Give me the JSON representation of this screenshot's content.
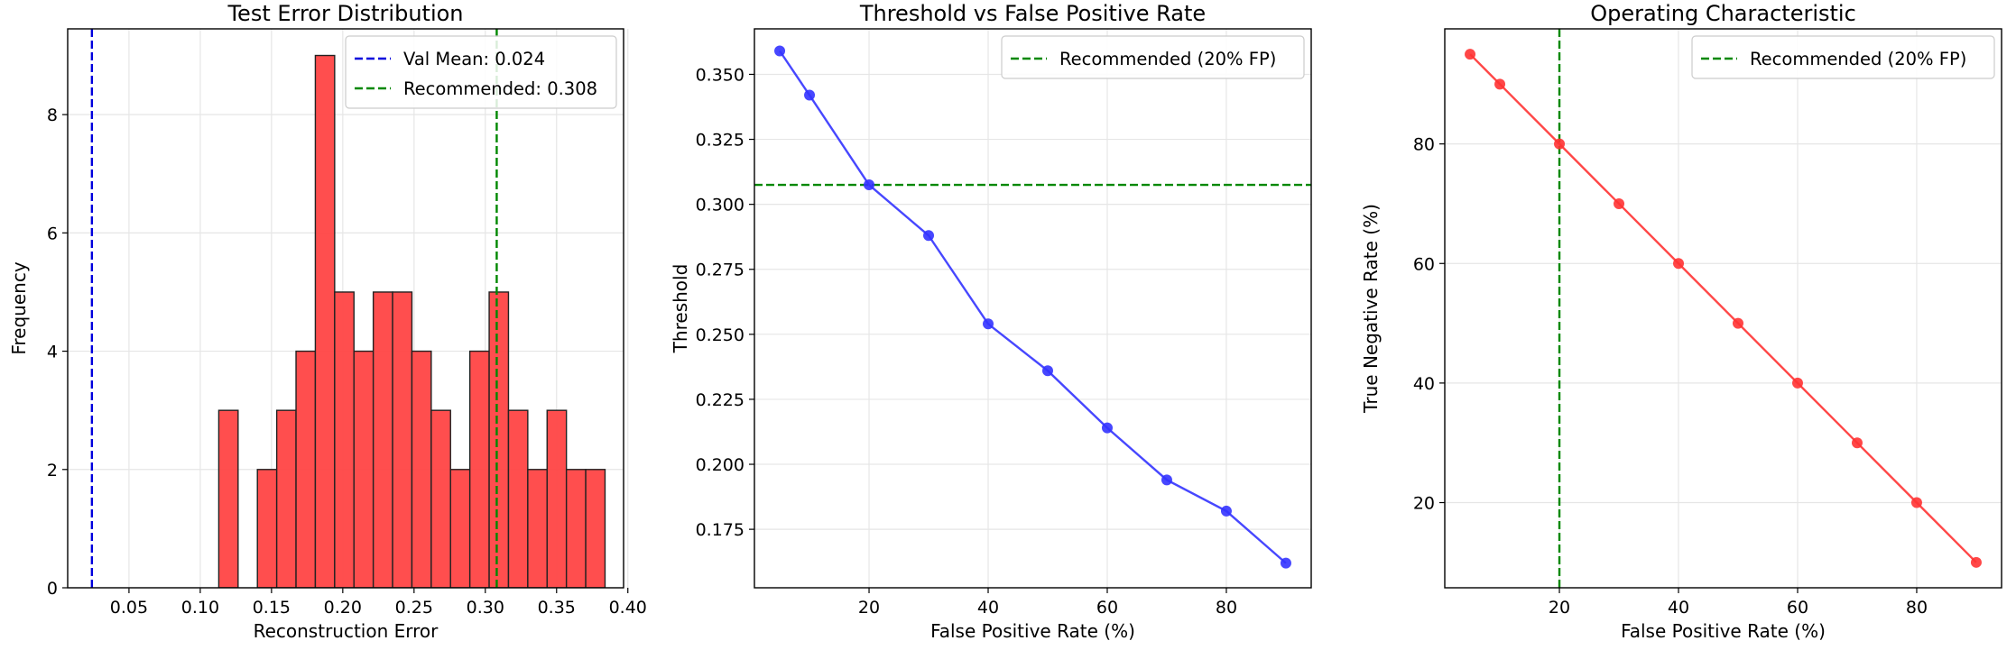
{
  "chart_data": [
    {
      "type": "bar",
      "title": "Test Error Distribution",
      "xlabel": "Reconstruction Error",
      "ylabel": "Frequency",
      "xlim": [
        0.007,
        0.397
      ],
      "ylim": [
        0,
        9.45
      ],
      "xticks": [
        "0.05",
        "0.10",
        "0.15",
        "0.20",
        "0.25",
        "0.30",
        "0.35",
        "0.40"
      ],
      "yticks": [
        "0",
        "2",
        "4",
        "6",
        "8"
      ],
      "bin_start": 0.113,
      "bin_width": 0.01355,
      "values": [
        3,
        0,
        2,
        3,
        4,
        9,
        5,
        4,
        5,
        5,
        4,
        3,
        2,
        4,
        5,
        3,
        2,
        3,
        2,
        2
      ],
      "bar_color": "#ff4444",
      "vlines": [
        {
          "name": "Val Mean: 0.024",
          "x": 0.024,
          "color": "#0000dd"
        },
        {
          "name": "Recommended: 0.308",
          "x": 0.308,
          "color": "#008800"
        }
      ],
      "legend": "top-right",
      "grid": true
    },
    {
      "type": "line",
      "title": "Threshold vs False Positive Rate",
      "xlabel": "False Positive Rate (%)",
      "ylabel": "Threshold",
      "xlim": [
        0.75,
        94.25
      ],
      "ylim": [
        0.1525,
        0.3675
      ],
      "xticks": [
        "20",
        "40",
        "60",
        "80"
      ],
      "yticks": [
        "0.175",
        "0.200",
        "0.225",
        "0.250",
        "0.275",
        "0.300",
        "0.325",
        "0.350"
      ],
      "x": [
        5,
        10,
        20,
        30,
        40,
        50,
        60,
        70,
        80,
        90
      ],
      "y": [
        0.359,
        0.342,
        0.3075,
        0.288,
        0.254,
        0.236,
        0.214,
        0.194,
        0.182,
        0.162
      ],
      "line_color": "#3333ff",
      "hline": {
        "name": "Recommended (20% FP)",
        "y": 0.3075,
        "color": "#008800"
      },
      "legend": "top-right",
      "grid": true
    },
    {
      "type": "line",
      "title": "Operating Characteristic",
      "xlabel": "False Positive Rate (%)",
      "ylabel": "True Negative Rate (%)",
      "xlim": [
        0.75,
        94.25
      ],
      "ylim": [
        5.75,
        99.25
      ],
      "xticks": [
        "20",
        "40",
        "60",
        "80"
      ],
      "yticks": [
        "20",
        "40",
        "60",
        "80"
      ],
      "x": [
        5,
        10,
        20,
        30,
        40,
        50,
        60,
        70,
        80,
        90
      ],
      "y": [
        95,
        90,
        80,
        70,
        60,
        50,
        40,
        30,
        20,
        10
      ],
      "line_color": "#ff3333",
      "vline": {
        "name": "Recommended (20% FP)",
        "x": 20,
        "color": "#008800"
      },
      "legend": "top-right",
      "grid": true
    }
  ]
}
